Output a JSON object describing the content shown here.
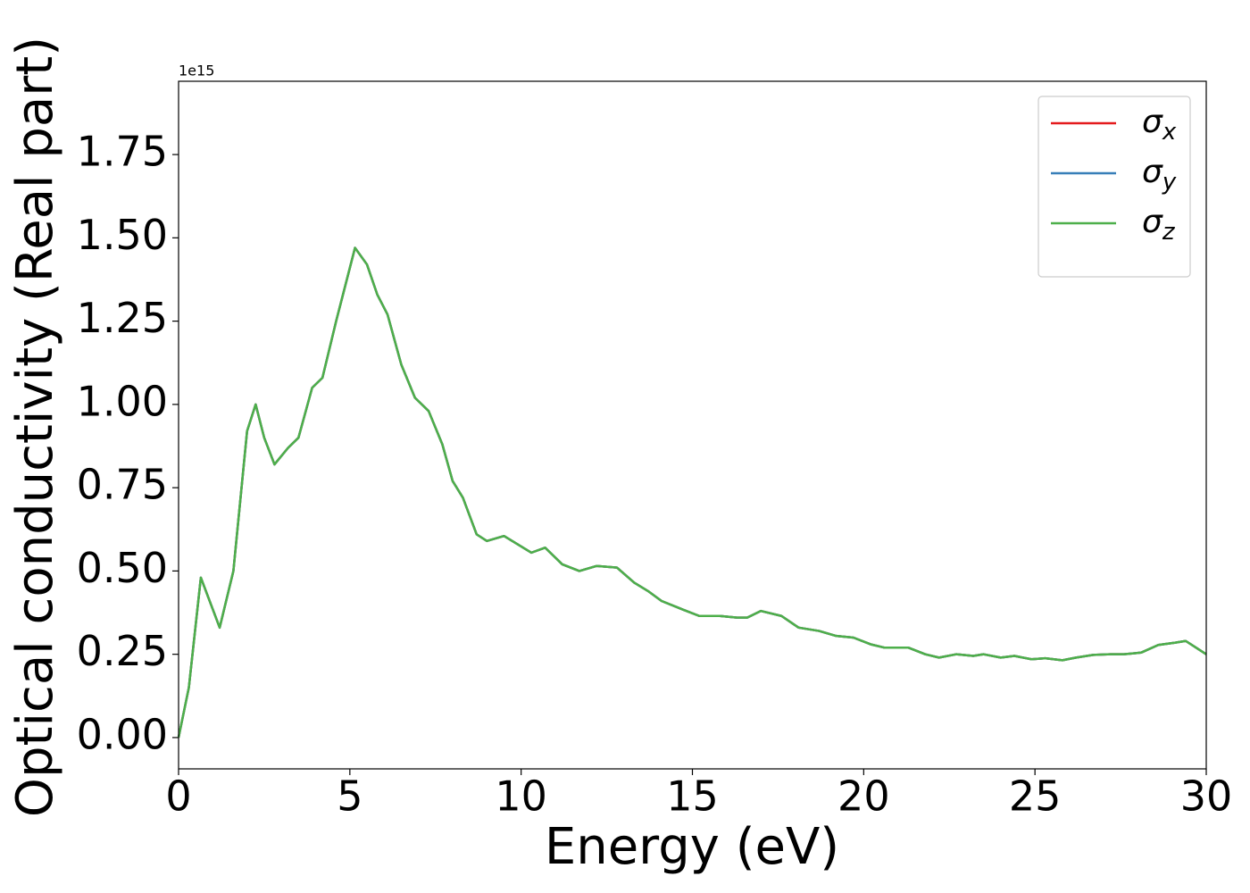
{
  "chart_data": {
    "type": "line",
    "xlabel": "Energy (eV)",
    "ylabel": "Optical conductivity (Real part)",
    "offset_label": "1e15",
    "x": [
      0,
      0.3,
      0.65,
      1.2,
      1.6,
      2.0,
      2.25,
      2.5,
      2.8,
      3.2,
      3.5,
      3.9,
      4.2,
      4.6,
      5.15,
      5.5,
      5.8,
      6.1,
      6.5,
      6.9,
      7.3,
      7.7,
      8.0,
      8.3,
      8.7,
      9.0,
      9.5,
      9.9,
      10.3,
      10.7,
      11.2,
      11.7,
      12.2,
      12.8,
      13.3,
      13.7,
      14.1,
      14.7,
      15.2,
      15.8,
      16.3,
      16.6,
      17.0,
      17.6,
      18.1,
      18.7,
      19.2,
      19.7,
      20.2,
      20.6,
      21.3,
      21.8,
      22.2,
      22.7,
      23.2,
      23.5,
      24.0,
      24.4,
      24.9,
      25.3,
      25.8,
      26.2,
      26.7,
      27.2,
      27.6,
      28.1,
      28.6,
      29.1,
      29.4,
      29.7,
      30
    ],
    "series": [
      {
        "name": "σx",
        "color": "#e41a1c",
        "values": [
          0,
          0.15,
          0.48,
          0.33,
          0.5,
          0.92,
          1.0,
          0.9,
          0.82,
          0.87,
          0.9,
          1.05,
          1.08,
          1.25,
          1.47,
          1.42,
          1.33,
          1.27,
          1.12,
          1.02,
          0.98,
          0.88,
          0.77,
          0.72,
          0.61,
          0.59,
          0.605,
          0.58,
          0.555,
          0.57,
          0.52,
          0.5,
          0.515,
          0.51,
          0.465,
          0.44,
          0.41,
          0.385,
          0.365,
          0.365,
          0.36,
          0.36,
          0.38,
          0.365,
          0.33,
          0.32,
          0.305,
          0.3,
          0.28,
          0.27,
          0.27,
          0.25,
          0.24,
          0.25,
          0.245,
          0.25,
          0.24,
          0.245,
          0.235,
          0.238,
          0.232,
          0.24,
          0.248,
          0.25,
          0.25,
          0.255,
          0.278,
          0.285,
          0.29,
          0.27,
          0.25
        ]
      },
      {
        "name": "σy",
        "color": "#377eb8",
        "values": [
          0,
          0.15,
          0.48,
          0.33,
          0.5,
          0.92,
          1.0,
          0.9,
          0.82,
          0.87,
          0.9,
          1.05,
          1.08,
          1.25,
          1.47,
          1.42,
          1.33,
          1.27,
          1.12,
          1.02,
          0.98,
          0.88,
          0.77,
          0.72,
          0.61,
          0.59,
          0.605,
          0.58,
          0.555,
          0.57,
          0.52,
          0.5,
          0.515,
          0.51,
          0.465,
          0.44,
          0.41,
          0.385,
          0.365,
          0.365,
          0.36,
          0.36,
          0.38,
          0.365,
          0.33,
          0.32,
          0.305,
          0.3,
          0.28,
          0.27,
          0.27,
          0.25,
          0.24,
          0.25,
          0.245,
          0.25,
          0.24,
          0.245,
          0.235,
          0.238,
          0.232,
          0.24,
          0.248,
          0.25,
          0.25,
          0.255,
          0.278,
          0.285,
          0.29,
          0.27,
          0.25
        ]
      },
      {
        "name": "σz",
        "color": "#4daf4a",
        "values": [
          0,
          0.15,
          0.48,
          0.33,
          0.5,
          0.92,
          1.0,
          0.9,
          0.82,
          0.87,
          0.9,
          1.05,
          1.08,
          1.25,
          1.47,
          1.42,
          1.33,
          1.27,
          1.12,
          1.02,
          0.98,
          0.88,
          0.77,
          0.72,
          0.61,
          0.59,
          0.605,
          0.58,
          0.555,
          0.57,
          0.52,
          0.5,
          0.515,
          0.51,
          0.465,
          0.44,
          0.41,
          0.385,
          0.365,
          0.365,
          0.36,
          0.36,
          0.38,
          0.365,
          0.33,
          0.32,
          0.305,
          0.3,
          0.28,
          0.27,
          0.27,
          0.25,
          0.24,
          0.25,
          0.245,
          0.25,
          0.24,
          0.245,
          0.235,
          0.238,
          0.232,
          0.24,
          0.248,
          0.25,
          0.25,
          0.255,
          0.278,
          0.285,
          0.29,
          0.27,
          0.25
        ]
      }
    ],
    "xlim": [
      0,
      30
    ],
    "xticks": [
      0,
      5,
      10,
      15,
      20,
      25,
      30
    ],
    "ylim": [
      -0.094,
      1.97
    ],
    "yticks": [
      {
        "value": 0,
        "label": "0.00"
      },
      0.25,
      {
        "value": 0.5,
        "label": "0.50"
      },
      0.75,
      {
        "value": 1,
        "label": "1.00"
      },
      1.25,
      {
        "value": 1.5,
        "label": "1.50"
      },
      1.75
    ],
    "grid": false,
    "legend": "upper right"
  }
}
